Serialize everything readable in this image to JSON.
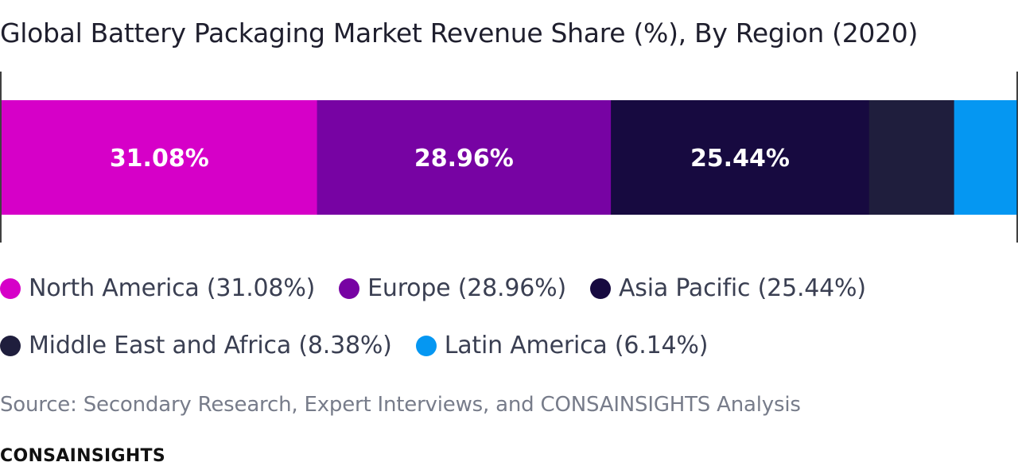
{
  "chart_data": {
    "type": "bar",
    "stacked": true,
    "orientation": "horizontal",
    "title": "Global Battery Packaging Market Revenue Share (%), By Region (2020)",
    "categories": [
      "North America",
      "Europe",
      "Asia Pacific",
      "Middle East and Africa",
      "Latin America"
    ],
    "values": [
      31.08,
      28.96,
      25.44,
      8.38,
      6.14
    ],
    "value_labels": [
      "31.08%",
      "28.96%",
      "25.44%",
      "",
      ""
    ],
    "colors": [
      "#d600c8",
      "#7703a3",
      "#170a40",
      "#1f1e3d",
      "#0597f2"
    ],
    "xlim": [
      0,
      100
    ],
    "legend": {
      "placement": "bottom",
      "entries": [
        "North America (31.08%)",
        "Europe (28.96%)",
        "Asia Pacific (25.44%)",
        "Middle East and Africa (8.38%)",
        "Latin America (6.14%)"
      ]
    },
    "grid": false
  },
  "source": "Source: Secondary Research, Expert Interviews, and CONSAINSIGHTS Analysis",
  "brand": "CONSAINSIGHTS"
}
